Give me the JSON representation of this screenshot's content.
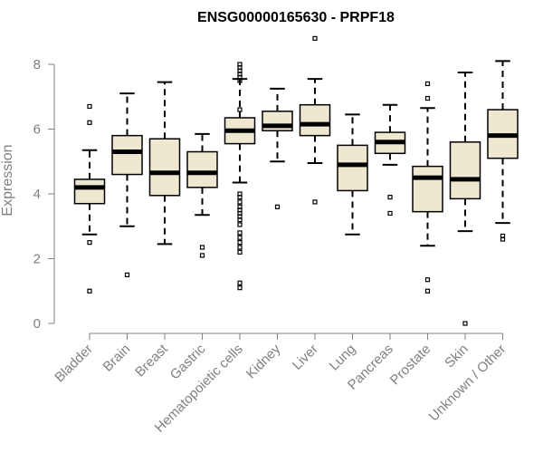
{
  "chart_data": {
    "type": "boxplot",
    "title": "ENSG00000165630 - PRPF18",
    "xlabel": "",
    "ylabel": "Expression",
    "ylim": [
      0,
      8.3
    ],
    "yticks": [
      "0",
      "2",
      "4",
      "6",
      "8"
    ],
    "grid": false,
    "colors": {
      "box_fill": "#efe8d0",
      "median": "#000000",
      "stroke": "#000000",
      "axis": "#808080"
    },
    "categories": [
      "Bladder",
      "Brain",
      "Breast",
      "Gastric",
      "Hematopoietic cells",
      "Kidney",
      "Liver",
      "Lung",
      "Pancreas",
      "Prostate",
      "Skin",
      "Unknown / Other"
    ],
    "series": [
      {
        "name": "Bladder",
        "whisker_low": 2.75,
        "q1": 3.7,
        "median": 4.2,
        "q3": 4.45,
        "whisker_high": 5.35,
        "outliers": [
          6.7,
          6.2,
          2.5,
          1.0
        ]
      },
      {
        "name": "Brain",
        "whisker_low": 3.0,
        "q1": 4.6,
        "median": 5.3,
        "q3": 5.8,
        "whisker_high": 7.1,
        "outliers": [
          1.5
        ]
      },
      {
        "name": "Breast",
        "whisker_low": 2.45,
        "q1": 3.95,
        "median": 4.65,
        "q3": 5.7,
        "whisker_high": 7.45,
        "outliers": []
      },
      {
        "name": "Gastric",
        "whisker_low": 3.35,
        "q1": 4.2,
        "median": 4.65,
        "q3": 5.3,
        "whisker_high": 5.85,
        "outliers": [
          2.35,
          2.1
        ]
      },
      {
        "name": "Hematopoietic cells",
        "whisker_low": 4.35,
        "q1": 5.55,
        "median": 5.95,
        "q3": 6.35,
        "whisker_high": 7.55,
        "outliers": [
          8.0,
          7.9,
          7.8,
          7.7,
          7.6,
          7.5,
          6.6,
          4.0,
          3.9,
          3.75,
          3.6,
          3.5,
          3.4,
          3.3,
          3.2,
          3.05,
          2.8,
          2.65,
          2.5,
          2.35,
          2.2,
          1.25,
          1.1
        ]
      },
      {
        "name": "Kidney",
        "whisker_low": 5.0,
        "q1": 5.95,
        "median": 6.1,
        "q3": 6.55,
        "whisker_high": 7.25,
        "outliers": [
          3.6
        ]
      },
      {
        "name": "Liver",
        "whisker_low": 4.95,
        "q1": 5.8,
        "median": 6.15,
        "q3": 6.75,
        "whisker_high": 7.55,
        "outliers": [
          8.8,
          3.75
        ]
      },
      {
        "name": "Lung",
        "whisker_low": 2.75,
        "q1": 4.1,
        "median": 4.9,
        "q3": 5.5,
        "whisker_high": 6.45,
        "outliers": []
      },
      {
        "name": "Pancreas",
        "whisker_low": 4.9,
        "q1": 5.25,
        "median": 5.6,
        "q3": 5.9,
        "whisker_high": 6.75,
        "outliers": [
          3.9,
          3.4
        ]
      },
      {
        "name": "Prostate",
        "whisker_low": 2.4,
        "q1": 3.45,
        "median": 4.5,
        "q3": 4.85,
        "whisker_high": 6.65,
        "outliers": [
          7.4,
          6.95,
          1.35,
          1.0
        ]
      },
      {
        "name": "Skin",
        "whisker_low": 2.85,
        "q1": 3.85,
        "median": 4.45,
        "q3": 5.6,
        "whisker_high": 7.75,
        "outliers": [
          0.0
        ]
      },
      {
        "name": "Unknown / Other",
        "whisker_low": 3.1,
        "q1": 5.1,
        "median": 5.8,
        "q3": 6.6,
        "whisker_high": 8.1,
        "outliers": [
          2.7,
          2.6
        ]
      }
    ]
  }
}
